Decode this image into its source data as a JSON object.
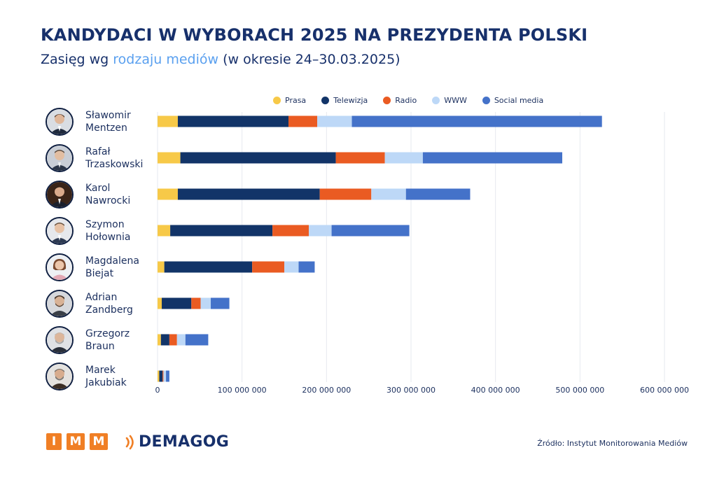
{
  "header": {
    "title": "KANDYDACI W WYBORACH 2025 NA PREZYDENTA POLSKI",
    "subtitle_prefix": "Zasięg wg ",
    "subtitle_highlight": "rodzaju mediów",
    "subtitle_suffix": " (w okresie 24–30.03.2025)"
  },
  "colors": {
    "Prasa": "#f7c948",
    "Telewizja": "#123468",
    "Radio": "#ea5b22",
    "WWW": "#bdd8f7",
    "Social media": "#4472c9",
    "grid": "#e6e9ef"
  },
  "candidates": [
    {
      "first": "Sławomir",
      "last": "Mentzen"
    },
    {
      "first": "Rafał",
      "last": "Trzaskowski"
    },
    {
      "first": "Karol",
      "last": "Nawrocki"
    },
    {
      "first": "Szymon",
      "last": "Hołownia"
    },
    {
      "first": "Magdalena",
      "last": "Biejat"
    },
    {
      "first": "Adrian",
      "last": "Zandberg"
    },
    {
      "first": "Grzegorz",
      "last": "Braun"
    },
    {
      "first": "Marek",
      "last": "Jakubiak"
    }
  ],
  "chart_data": {
    "type": "bar",
    "orientation": "horizontal",
    "stacked": true,
    "title": "KANDYDACI W WYBORACH 2025 NA PREZYDENTA POLSKI",
    "subtitle": "Zasięg wg rodzaju mediów (w okresie 24–30.03.2025)",
    "categories": [
      "Sławomir Mentzen",
      "Rafał Trzaskowski",
      "Karol Nawrocki",
      "Szymon Hołownia",
      "Magdalena Biejat",
      "Adrian Zandberg",
      "Grzegorz Braun",
      "Marek Jakubiak"
    ],
    "series": [
      {
        "name": "Prasa",
        "values": [
          24000000,
          27000000,
          24000000,
          15000000,
          8000000,
          5000000,
          4000000,
          2000000
        ]
      },
      {
        "name": "Telewizja",
        "values": [
          131000000,
          184000000,
          168000000,
          121000000,
          104000000,
          35000000,
          10000000,
          4000000
        ]
      },
      {
        "name": "Radio",
        "values": [
          34000000,
          58000000,
          61000000,
          43000000,
          38000000,
          11000000,
          9000000,
          1000000
        ]
      },
      {
        "name": "WWW",
        "values": [
          41000000,
          45000000,
          41000000,
          27000000,
          17000000,
          12000000,
          10000000,
          3000000
        ]
      },
      {
        "name": "Social media",
        "values": [
          296000000,
          165000000,
          76000000,
          92000000,
          19000000,
          22000000,
          27000000,
          4000000
        ]
      }
    ],
    "xlim": [
      0,
      600000000
    ],
    "xticks": [
      0,
      100000000,
      200000000,
      300000000,
      400000000,
      500000000,
      600000000
    ],
    "xtick_labels": [
      "0",
      "100 000 000",
      "200 000 000",
      "300 000 000",
      "400 000 000",
      "500 000 000",
      "600 000 000"
    ],
    "grid": true,
    "legend_position": "top"
  },
  "footer": {
    "imm_letters": [
      "I",
      "M",
      "M"
    ],
    "demagog": "DEMAGOG",
    "source": "Źródło: Instytut Monitorowania Mediów"
  }
}
